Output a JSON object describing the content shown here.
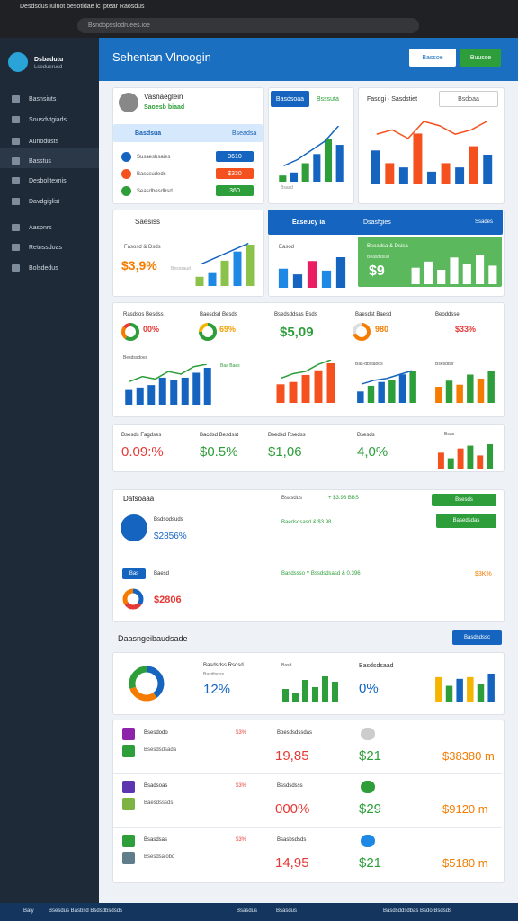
{
  "browser": {
    "tab": "Desdsdus Iuinot besotidae ic iptear Raosdus",
    "address": "Bsndopsslodruees.ioe"
  },
  "sidebar": {
    "brand": "Dsbadutu",
    "brand_sub": "Lsoduerusd",
    "items": [
      "Basnsiuts",
      "Sousdvtgiads",
      "Aunodusts",
      "Basstus",
      "Desbolitexnis",
      "Davdgiglist",
      "Aaspnrs",
      "Retnssdoas",
      "Bolsdedus"
    ]
  },
  "header": {
    "title": "Sehentan Vlnoogin",
    "buttons": [
      "Bassoe",
      "Buusse"
    ]
  },
  "profile": {
    "name": "Vasnaeglein",
    "sub": "Saoesb biaad",
    "tab": "Basdsua",
    "tab_right": "Bseadsa",
    "rows": [
      {
        "label": "Susaesbsaies",
        "pill": "3610",
        "color": "#1565c0"
      },
      {
        "label": "Basssudeds",
        "pill": "$330",
        "color": "#f4511e"
      },
      {
        "label": "Seasdbesdbsd",
        "pill": "360",
        "color": "#2e9e3a"
      }
    ]
  },
  "trend": {
    "button": "Basdsoaa",
    "label": "Bsssuta",
    "axis": "Bsasd"
  },
  "fiscal": {
    "title": "Fasdgi · Sasdstiet",
    "select": "Bsdoaa"
  },
  "sales": {
    "title": "Saesiss",
    "sub": "Fasosd & Dsds",
    "value": "$3,9%",
    "note": "Besssaud"
  },
  "finance": {
    "title": "Easeucy ia",
    "mid": "Dsasfgies",
    "right": "Ssades",
    "left_label": "Easod",
    "green_title": "Bseadsa & Dsisa",
    "green_sub": "Beasdssud",
    "green_value": "$9"
  },
  "metrics": [
    {
      "title": "Rasdsos Besdss",
      "value": "00%",
      "color": "#e53935"
    },
    {
      "title": "Baesdsd Besds",
      "value": "69%",
      "color": "#f4a000"
    },
    {
      "title": "Bsedsddsas Bsds",
      "value": "$5,09",
      "color": "#2e9e3a"
    },
    {
      "title": "Baesdst Baesd",
      "value": "980",
      "color": "#f57c00"
    },
    {
      "title": "Beoddsse",
      "value": "$33%",
      "color": "#e53935"
    }
  ],
  "metric_charts": {
    "first": "Besdssdoes",
    "legend": "Baa Baes",
    "fourth": "Bas-dbstaods",
    "fifth": "Bsesddsr"
  },
  "stats": [
    {
      "title": "Bsesds Fagdses",
      "value": "0.09:%",
      "color": "#e53935"
    },
    {
      "title": "Bacdsd Besdsst",
      "value": "$0.5%",
      "color": "#2e9e3a"
    },
    {
      "title": "Bsedsd Rsedss",
      "value": "$1,06",
      "color": "#2e9e3a"
    },
    {
      "title": "Bsesds",
      "value": "4,0%",
      "color": "#2e9e3a"
    },
    {
      "title": "Bsas"
    }
  ],
  "panel": {
    "title": "Dafsoaaa",
    "right": "Bsasdus",
    "delta": "+ $3.93 BBS",
    "button": "Bsesds",
    "button2": "Basedsdas",
    "row_label": "Bsdsodsuds",
    "row_value": "$2856%",
    "row_sub": "Baedsdsasd & $3.98",
    "pill": "Bas",
    "label2": "Baesd",
    "sub2": "Basdssso ˅ Bssdsdsasd & 0.396",
    "right2": "$3K%",
    "value2": "$2806"
  },
  "section": {
    "title": "Daasngeibaudsade",
    "button": "Basdsdssc",
    "col1_title": "Basdsdss Rsdsd",
    "col1_sub": "Basdtsdss",
    "col1_value": "12%",
    "col2_label": "Basd",
    "col3_title": "Basdsdsaad",
    "col3_value": "0%"
  },
  "table": {
    "rows": [
      [
        "Bsesdodo",
        "Bsesdsdsada",
        "$3%",
        "Boesdsdssdas",
        "19,85",
        "$21",
        "$38380 m"
      ],
      [
        "Bsadsoas",
        "Baesdsssds",
        "$3%",
        "Bssdsdsss",
        "000%",
        "$29",
        "$9120 m"
      ],
      [
        "Bsasdsas",
        "Bsesdsaiobd",
        "$3%",
        "Bsasbsdsds",
        "14,95",
        "$21",
        "$5180 m"
      ]
    ]
  },
  "taskbar": [
    "Baly",
    "Bsesdus Basbsd Bsdsdbsdsds",
    "Bsasdus",
    "Bsasdus",
    "Basdsddsdbas Bsdo Bsdsds"
  ],
  "charts": [
    {
      "bars": [
        10,
        15,
        30,
        45,
        70,
        60
      ],
      "colors": [
        "#2e9e3a",
        "#1565c0"
      ],
      "line": [
        20,
        30,
        45,
        60,
        85
      ],
      "line_color": "#1565c0"
    },
    {
      "bars": [
        40,
        25,
        20,
        60,
        15,
        25,
        20,
        45,
        35
      ],
      "colors": [
        "#1565c0",
        "#f4511e"
      ],
      "line": [
        55,
        60,
        50,
        70,
        65,
        55,
        60,
        70
      ],
      "line_color": "#f4511e"
    },
    {
      "bars": [
        20,
        30,
        55,
        75,
        90
      ],
      "colors": [
        "#8bc34a",
        "#1e88e5"
      ],
      "line": [
        40,
        55,
        70,
        85
      ],
      "line_color": "#1565c0"
    },
    {
      "bars": [
        50,
        35,
        70,
        45,
        80
      ],
      "colors": [
        "#1e88e5",
        "#1565c0",
        "#e91e63"
      ]
    },
    {
      "bars": [
        40,
        55,
        35,
        65,
        50,
        70,
        45
      ],
      "colors": [
        "#ffffff"
      ]
    },
    {
      "bars": [
        30,
        35,
        40,
        55,
        50,
        55,
        65,
        75
      ],
      "colors": [
        "#1565c0"
      ],
      "line": [
        40,
        50,
        45,
        60,
        55,
        70,
        75
      ],
      "line_color": "#2e9e3a"
    },
    {
      "bars": [
        40,
        45,
        60,
        70,
        85
      ],
      "colors": [
        "#f4511e"
      ],
      "line": [
        45,
        55,
        60,
        75,
        85
      ],
      "line_color": "#2e9e3a"
    },
    {
      "bars": [
        30,
        45,
        55,
        60,
        75,
        85
      ],
      "colors": [
        "#1565c0",
        "#2e9e3a"
      ],
      "line": [
        40,
        50,
        55,
        65,
        75
      ],
      "line_color": "#1565c0"
    },
    {
      "bars": [
        40,
        55,
        45,
        70,
        60,
        80
      ],
      "colors": [
        "#f57c00",
        "#2e9e3a"
      ]
    },
    {
      "bars": [
        60,
        40,
        75,
        85,
        50,
        90
      ],
      "colors": [
        "#f4511e",
        "#2e9e3a"
      ]
    },
    {
      "bars": [
        35,
        25,
        60,
        40,
        70,
        55
      ],
      "colors": [
        "#2e9e3a"
      ]
    },
    {
      "bars": [
        70,
        45,
        65,
        70,
        50,
        80
      ],
      "colors": [
        "#f4b400",
        "#2e9e3a",
        "#1565c0"
      ]
    }
  ],
  "donuts": [
    {
      "values": [
        60,
        25,
        15
      ],
      "colors": [
        "#2e9e3a",
        "#f57c00",
        "#e53935"
      ]
    },
    {
      "values": [
        75,
        25
      ],
      "colors": [
        "#2e9e3a",
        "#f4b400"
      ]
    },
    {
      "values": [
        70,
        30
      ],
      "colors": [
        "#f57c00",
        "#dddddd"
      ]
    },
    {
      "values": [
        35,
        30,
        35
      ],
      "colors": [
        "#1565c0",
        "#e53935",
        "#f57c00"
      ]
    },
    {
      "values": [
        40,
        30,
        30
      ],
      "colors": [
        "#1565c0",
        "#f57c00",
        "#2e9e3a"
      ]
    }
  ]
}
